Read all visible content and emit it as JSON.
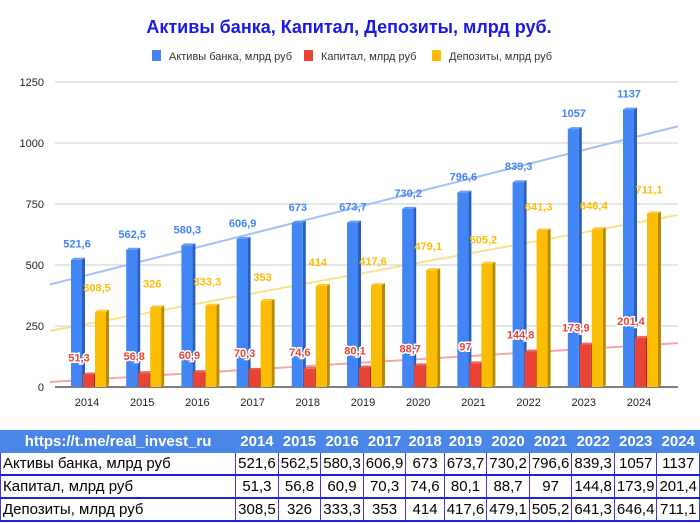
{
  "chart_data": {
    "type": "bar",
    "title": "Активы банка, Капитал, Депозиты, млрд руб.",
    "categories": [
      "2014",
      "2015",
      "2016",
      "2017",
      "2018",
      "2019",
      "2020",
      "2021",
      "2022",
      "2023",
      "2024"
    ],
    "series": [
      {
        "name": "Активы банка, млрд руб",
        "color": "#4285f4",
        "values": [
          521.6,
          562.5,
          580.3,
          606.9,
          673,
          673.7,
          730.2,
          796.6,
          839.3,
          1057,
          1137
        ],
        "labels": [
          "521,6",
          "562,5",
          "580,3",
          "606,9",
          "673",
          "673,7",
          "730,2",
          "796,6",
          "839,3",
          "1057",
          "1137"
        ]
      },
      {
        "name": "Капитал, млрд руб",
        "color": "#ea4335",
        "values": [
          51.3,
          56.8,
          60.9,
          70.3,
          74.6,
          80.1,
          88.7,
          97,
          144.8,
          173.9,
          201.4
        ],
        "labels": [
          "51,3",
          "56,8",
          "60,9",
          "70,3",
          "74,6",
          "80,1",
          "88,7",
          "97",
          "144,8",
          "173,9",
          "201,4"
        ]
      },
      {
        "name": "Депозиты, млрд руб",
        "color": "#fbbc04",
        "values": [
          308.5,
          326,
          333.3,
          353,
          414,
          417.6,
          479.1,
          505.2,
          641.3,
          646.4,
          711.1
        ],
        "labels": [
          "308,5",
          "326",
          "333,3",
          "353",
          "414",
          "417,6",
          "479,1",
          "505,2",
          "641,3",
          "646,4",
          "711,1"
        ]
      }
    ],
    "yticks": [
      "0",
      "250",
      "500",
      "750",
      "1000",
      "1250"
    ],
    "ylim": [
      0,
      1250
    ],
    "trendlines": true,
    "legend": "top"
  },
  "table": {
    "header": "https://t.me/real_invest_ru"
  }
}
